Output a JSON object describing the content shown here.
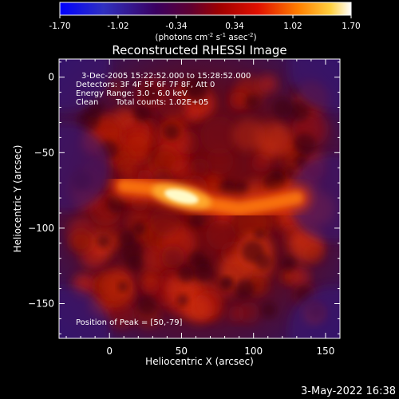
{
  "colorbar": {
    "ticks": [
      "-1.70",
      "-1.02",
      "-0.34",
      "0.34",
      "1.02",
      "1.70"
    ],
    "tick_values": [
      -1.7,
      -1.02,
      -0.34,
      0.34,
      1.02,
      1.7
    ],
    "range": [
      -1.7,
      1.7
    ],
    "unit_label": "(photons cm",
    "unit_exp1": "-2",
    "unit_mid": " s",
    "unit_exp2": "-1",
    "unit_mid2": " asec",
    "unit_exp3": "-2",
    "unit_close": ")"
  },
  "chart_data": {
    "type": "heatmap",
    "title": "Reconstructed RHESSI Image",
    "xlabel": "Heliocentric X (arcsec)",
    "ylabel": "Heliocentric Y (arcsec)",
    "xlim": [
      -35,
      160
    ],
    "ylim": [
      -173,
      12
    ],
    "xticks": [
      0,
      50,
      100,
      150
    ],
    "yticks": [
      0,
      -50,
      -100,
      -150
    ],
    "xtick_labels": [
      "0",
      "50",
      "100",
      "150"
    ],
    "ytick_labels": [
      "0",
      "−50",
      "−100",
      "−150"
    ],
    "colormap": "hot",
    "peak": {
      "x": 50,
      "y": -79
    },
    "emission_ridge": [
      {
        "x": 10,
        "y": -72
      },
      {
        "x": 30,
        "y": -74
      },
      {
        "x": 50,
        "y": -79
      },
      {
        "x": 70,
        "y": -84
      },
      {
        "x": 90,
        "y": -87
      },
      {
        "x": 110,
        "y": -84
      },
      {
        "x": 130,
        "y": -80
      }
    ],
    "annotations": {
      "time_range": "3-Dec-2005 15:22:52.000 to 15:28:52.000",
      "detectors": "Detectors: 3F 4F 5F 6F 7F 8F, Att 0",
      "energy": "Energy Range: 3.0 - 6.0 keV",
      "clean_label": "Clean",
      "total_counts": "Total counts: 1.02E+05",
      "peak_position": "Position of Peak = [50,-79]"
    }
  },
  "footer": {
    "timestamp": "3-May-2022 16:38"
  },
  "colors": {
    "background": "#000000",
    "foreground": "#ffffff"
  }
}
